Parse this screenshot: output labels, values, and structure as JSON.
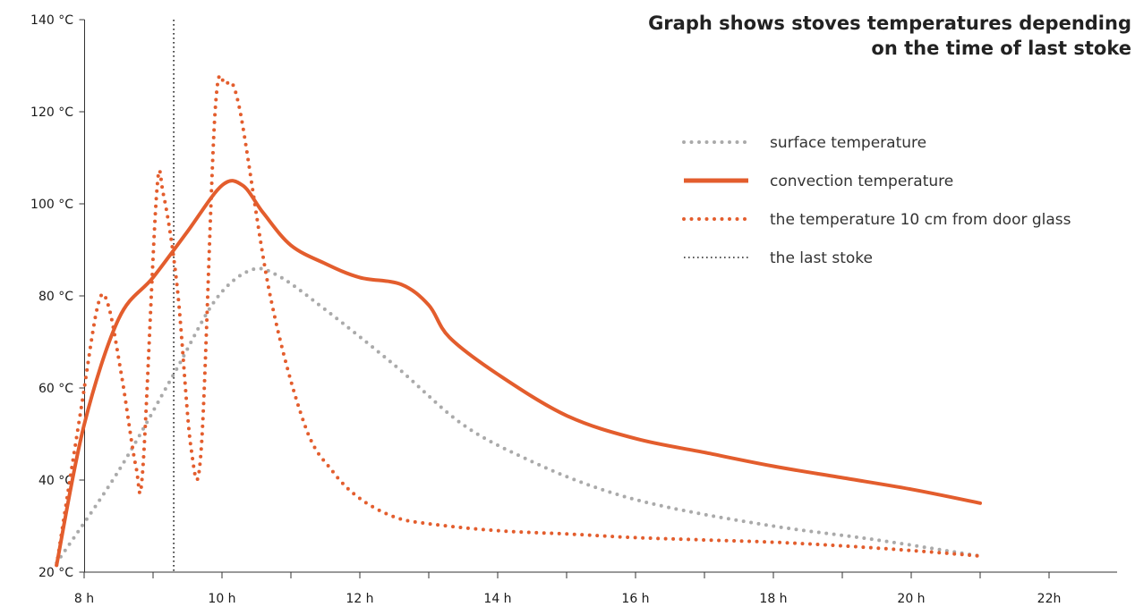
{
  "title_line1": "Graph shows stoves temperatures depending",
  "title_line2": "on the time of last stoke",
  "chart_data": {
    "type": "line",
    "title": "Graph shows stoves temperatures depending on the time of last stoke",
    "xlim": [
      7,
      22
    ],
    "ylim": [
      20,
      140
    ],
    "x_ticks": [
      {
        "value": 8,
        "label": "8 h"
      },
      {
        "value": 10,
        "label": "10 h"
      },
      {
        "value": 12,
        "label": "12 h"
      },
      {
        "value": 14,
        "label": "14 h"
      },
      {
        "value": 16,
        "label": "16 h"
      },
      {
        "value": 18,
        "label": "18 h"
      },
      {
        "value": 20,
        "label": "20 h"
      },
      {
        "value": 22,
        "label": "22h"
      }
    ],
    "x_minor_ticks": [
      9,
      11,
      13,
      15,
      17,
      19,
      21
    ],
    "y_ticks": [
      {
        "value": 20,
        "label": "20 °C"
      },
      {
        "value": 40,
        "label": "40 °C"
      },
      {
        "value": 60,
        "label": "60 °C"
      },
      {
        "value": 80,
        "label": "80 °C"
      },
      {
        "value": 100,
        "label": "100 °C"
      },
      {
        "value": 120,
        "label": "120 °C"
      },
      {
        "value": 140,
        "label": "140 °C"
      }
    ],
    "grid": false,
    "legend_position": "top-right",
    "last_stoke_x": 9.3,
    "series": [
      {
        "name": "surface temperature",
        "color": "#aaaaaa",
        "style": "dotted",
        "points": [
          [
            7.6,
            22
          ],
          [
            8.5,
            42
          ],
          [
            9.3,
            63
          ],
          [
            9.9,
            79
          ],
          [
            10.4,
            85.5
          ],
          [
            10.8,
            84.5
          ],
          [
            11.5,
            77
          ],
          [
            12.5,
            65
          ],
          [
            13.5,
            52
          ],
          [
            14.5,
            44
          ],
          [
            15.5,
            38
          ],
          [
            16.5,
            34
          ],
          [
            18,
            30
          ],
          [
            19.5,
            27
          ],
          [
            21,
            23.5
          ]
        ]
      },
      {
        "name": "convection temperature",
        "color": "#e35d2d",
        "style": "solid",
        "points": [
          [
            7.6,
            21.5
          ],
          [
            8,
            52
          ],
          [
            8.5,
            75
          ],
          [
            9,
            84
          ],
          [
            9.5,
            94
          ],
          [
            10,
            104
          ],
          [
            10.3,
            104
          ],
          [
            10.6,
            98
          ],
          [
            11,
            91
          ],
          [
            11.5,
            87
          ],
          [
            12,
            84
          ],
          [
            12.6,
            82.5
          ],
          [
            13,
            78
          ],
          [
            13.3,
            71
          ],
          [
            14,
            63
          ],
          [
            15,
            54
          ],
          [
            16,
            49
          ],
          [
            17,
            46
          ],
          [
            18,
            43
          ],
          [
            19,
            40.5
          ],
          [
            20,
            38
          ],
          [
            21,
            35
          ]
        ]
      },
      {
        "name": "the temperature 10 cm from door glass",
        "color": "#e35d2d",
        "style": "dotted",
        "points": [
          [
            7.6,
            21.5
          ],
          [
            7.95,
            55
          ],
          [
            8.2,
            78
          ],
          [
            8.35,
            78
          ],
          [
            8.55,
            62
          ],
          [
            8.75,
            43
          ],
          [
            8.85,
            42
          ],
          [
            9.05,
            102
          ],
          [
            9.15,
            102
          ],
          [
            9.35,
            82
          ],
          [
            9.55,
            47
          ],
          [
            9.7,
            47
          ],
          [
            9.9,
            120
          ],
          [
            10.05,
            126
          ],
          [
            10.25,
            121
          ],
          [
            10.7,
            80
          ],
          [
            11.2,
            52
          ],
          [
            11.6,
            42
          ],
          [
            12,
            36
          ],
          [
            12.5,
            32
          ],
          [
            13,
            30.5
          ],
          [
            14,
            29
          ],
          [
            15,
            28.3
          ],
          [
            16,
            27.5
          ],
          [
            17,
            27
          ],
          [
            18,
            26.5
          ],
          [
            19,
            25.7
          ],
          [
            20,
            24.7
          ],
          [
            21,
            23.5
          ]
        ]
      }
    ],
    "legend": [
      {
        "label": "surface temperature",
        "color": "#aaaaaa",
        "style": "dotted"
      },
      {
        "label": "convection temperature",
        "color": "#e35d2d",
        "style": "solid"
      },
      {
        "label": "the temperature 10 cm from door glass",
        "color": "#e35d2d",
        "style": "dotted"
      },
      {
        "label": "the last stoke",
        "color": "#222222",
        "style": "fine-dotted"
      }
    ]
  }
}
